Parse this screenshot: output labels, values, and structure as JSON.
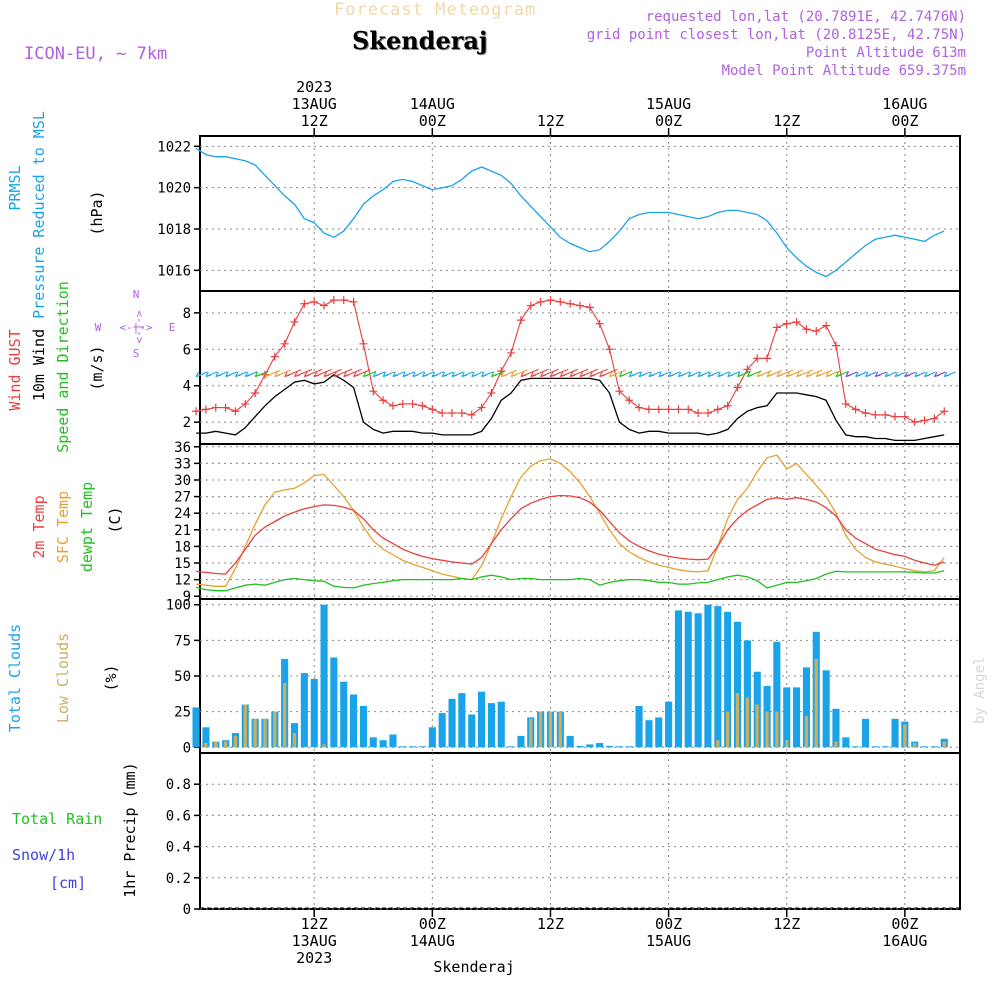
{
  "header": {
    "meteogram_title": "Forecast Meteogram",
    "location": "Skenderaj",
    "model": "ICON-EU, ~ 7km",
    "requested": "requested lon,lat (20.7891E, 42.7476N)",
    "grid_point": "grid point closest lon,lat (20.8125E, 42.75N)",
    "point_altitude": "Point Altitude 613m",
    "model_altitude": "Model Point Altitude 659.375m"
  },
  "footer_location": "Skenderaj",
  "watermark": "by Angel",
  "colors": {
    "pressure": "#1aa3e8",
    "gust": "#e84040",
    "wind": "#000000",
    "sfc_temp": "#e8a030",
    "temp2m": "#e84040",
    "dewpoint": "#22c022",
    "total_clouds": "#1aa3e8",
    "low_clouds": "#c8b060",
    "rain": "#22c022",
    "snow": "#4040e0",
    "purple": "#b060e0"
  },
  "chart_data": [
    {
      "type": "line",
      "title": "PRMSL Pressure Reduced to MSL",
      "ylabel_lines": [
        "PRMSL",
        "Pressure Reduced to MSL",
        "(hPa)"
      ],
      "ylim": [
        1015.0,
        1022.5
      ],
      "yticks": [
        1016,
        1018,
        1020,
        1022
      ],
      "x_hours_from_13aug_00z": [
        0,
        1,
        2,
        3,
        4,
        5,
        6,
        7,
        8,
        9,
        10,
        11,
        12,
        13,
        14,
        15,
        16,
        17,
        18,
        19,
        20,
        21,
        22,
        23,
        24,
        25,
        26,
        27,
        28,
        29,
        30,
        31,
        32,
        33,
        34,
        35,
        36,
        37,
        38,
        39,
        40,
        41,
        42,
        43,
        44,
        45,
        46,
        47,
        48,
        49,
        50,
        51,
        52,
        53,
        54,
        55,
        56,
        57,
        58,
        59,
        60,
        61,
        62,
        63,
        64,
        65,
        66,
        67,
        68,
        69,
        70,
        71,
        72,
        73,
        74,
        75,
        76
      ],
      "series": [
        {
          "name": "PRMSL",
          "values": [
            1021.9,
            1021.6,
            1021.5,
            1021.5,
            1021.4,
            1021.3,
            1021.1,
            1020.6,
            1020.1,
            1019.6,
            1019.2,
            1018.5,
            1018.3,
            1017.8,
            1017.6,
            1017.9,
            1018.5,
            1019.2,
            1019.6,
            1019.9,
            1020.3,
            1020.4,
            1020.3,
            1020.1,
            1019.9,
            1020.0,
            1020.1,
            1020.4,
            1020.8,
            1021.0,
            1020.8,
            1020.6,
            1020.2,
            1019.6,
            1019.1,
            1018.6,
            1018.1,
            1017.6,
            1017.3,
            1017.1,
            1016.9,
            1017.0,
            1017.4,
            1017.9,
            1018.5,
            1018.7,
            1018.8,
            1018.8,
            1018.8,
            1018.7,
            1018.6,
            1018.5,
            1018.6,
            1018.8,
            1018.9,
            1018.9,
            1018.8,
            1018.7,
            1018.4,
            1017.8,
            1017.1,
            1016.6,
            1016.2,
            1015.9,
            1015.7,
            1016.0,
            1016.4,
            1016.8,
            1017.2,
            1017.5,
            1017.6,
            1017.7,
            1017.6,
            1017.5,
            1017.4,
            1017.7,
            1017.9
          ]
        }
      ]
    },
    {
      "type": "line",
      "title": "Wind GUST, 10m Wind Speed and Direction",
      "ylabel_lines": [
        "Wind GUST",
        "10m Wind",
        "Speed and Direction",
        "(m/s)"
      ],
      "compass_labels": {
        "n": "N",
        "s": "S",
        "w": "W",
        "e": "E",
        "arrows": "<-|->"
      },
      "ylim": [
        0.8,
        9.2
      ],
      "yticks": [
        2,
        4,
        6,
        8
      ],
      "x_hours_from_13aug_00z": [
        0,
        1,
        2,
        3,
        4,
        5,
        6,
        7,
        8,
        9,
        10,
        11,
        12,
        13,
        14,
        15,
        16,
        17,
        18,
        19,
        20,
        21,
        22,
        23,
        24,
        25,
        26,
        27,
        28,
        29,
        30,
        31,
        32,
        33,
        34,
        35,
        36,
        37,
        38,
        39,
        40,
        41,
        42,
        43,
        44,
        45,
        46,
        47,
        48,
        49,
        50,
        51,
        52,
        53,
        54,
        55,
        56,
        57,
        58,
        59,
        60,
        61,
        62,
        63,
        64,
        65,
        66,
        67,
        68,
        69,
        70,
        71,
        72,
        73,
        74,
        75,
        76
      ],
      "series": [
        {
          "name": "Wind GUST",
          "marker": "+",
          "values": [
            2.6,
            2.7,
            2.8,
            2.8,
            2.6,
            3.0,
            3.6,
            4.6,
            5.6,
            6.3,
            7.5,
            8.5,
            8.6,
            8.4,
            8.7,
            8.7,
            8.6,
            6.3,
            3.7,
            3.2,
            2.9,
            3.0,
            3.0,
            2.9,
            2.7,
            2.5,
            2.5,
            2.5,
            2.4,
            2.8,
            3.6,
            4.8,
            5.8,
            7.6,
            8.4,
            8.6,
            8.7,
            8.6,
            8.5,
            8.4,
            8.3,
            7.4,
            6.0,
            3.7,
            3.2,
            2.8,
            2.7,
            2.7,
            2.7,
            2.7,
            2.7,
            2.5,
            2.5,
            2.7,
            2.9,
            3.9,
            4.9,
            5.5,
            5.5,
            7.2,
            7.4,
            7.5,
            7.1,
            7.0,
            7.3,
            6.2,
            3.0,
            2.7,
            2.5,
            2.4,
            2.4,
            2.3,
            2.3,
            2.0,
            2.1,
            2.2,
            2.6
          ]
        },
        {
          "name": "10m Wind",
          "values": [
            1.4,
            1.4,
            1.5,
            1.4,
            1.3,
            1.7,
            2.3,
            2.9,
            3.4,
            3.8,
            4.2,
            4.3,
            4.1,
            4.2,
            4.6,
            4.3,
            3.9,
            2.0,
            1.6,
            1.4,
            1.5,
            1.5,
            1.5,
            1.4,
            1.4,
            1.3,
            1.3,
            1.3,
            1.3,
            1.5,
            2.2,
            3.2,
            3.6,
            4.3,
            4.4,
            4.4,
            4.4,
            4.4,
            4.4,
            4.4,
            4.4,
            4.3,
            3.6,
            2.0,
            1.6,
            1.4,
            1.5,
            1.5,
            1.4,
            1.4,
            1.4,
            1.4,
            1.3,
            1.4,
            1.6,
            2.2,
            2.6,
            2.8,
            2.9,
            3.6,
            3.6,
            3.6,
            3.5,
            3.4,
            3.2,
            2.1,
            1.3,
            1.2,
            1.2,
            1.1,
            1.1,
            1.0,
            1.0,
            1.0,
            1.1,
            1.2,
            1.3
          ]
        }
      ]
    },
    {
      "type": "line",
      "title": "2m Temp, SFC Temp, dewpt Temp",
      "ylabel_lines": [
        "2m Temp",
        "SFC Temp",
        "dewpt Temp",
        "(C)"
      ],
      "ylim": [
        8.5,
        36.5
      ],
      "yticks": [
        9,
        12,
        15,
        18,
        21,
        24,
        27,
        30,
        33,
        36
      ],
      "x_hours_from_13aug_00z": [
        0,
        1,
        2,
        3,
        4,
        5,
        6,
        7,
        8,
        9,
        10,
        11,
        12,
        13,
        14,
        15,
        16,
        17,
        18,
        19,
        20,
        21,
        22,
        23,
        24,
        25,
        26,
        27,
        28,
        29,
        30,
        31,
        32,
        33,
        34,
        35,
        36,
        37,
        38,
        39,
        40,
        41,
        42,
        43,
        44,
        45,
        46,
        47,
        48,
        49,
        50,
        51,
        52,
        53,
        54,
        55,
        56,
        57,
        58,
        59,
        60,
        61,
        62,
        63,
        64,
        65,
        66,
        67,
        68,
        69,
        70,
        71,
        72,
        73,
        74,
        75,
        76
      ],
      "series": [
        {
          "name": "SFC Temp",
          "values": [
            11.2,
            11.0,
            10.8,
            10.8,
            14.0,
            18.0,
            22.0,
            25.5,
            27.8,
            28.2,
            28.5,
            29.5,
            30.8,
            31.0,
            29.0,
            27.0,
            24.5,
            21.5,
            19.0,
            17.5,
            16.5,
            15.5,
            14.8,
            14.2,
            13.6,
            13.0,
            12.6,
            12.2,
            12.0,
            14.5,
            18.5,
            23.0,
            27.0,
            30.5,
            32.5,
            33.5,
            33.8,
            33.0,
            31.5,
            29.5,
            27.0,
            24.0,
            21.0,
            18.5,
            17.0,
            16.0,
            15.2,
            14.6,
            14.2,
            13.8,
            13.5,
            13.4,
            13.6,
            18.0,
            23.0,
            26.5,
            28.5,
            31.5,
            34.0,
            34.5,
            32.0,
            33.0,
            31.0,
            29.0,
            27.0,
            24.0,
            20.0,
            17.5,
            16.0,
            15.2,
            14.8,
            14.4,
            14.0,
            13.6,
            13.4,
            13.6,
            16.0
          ]
        },
        {
          "name": "2m Temp",
          "values": [
            13.5,
            13.3,
            13.1,
            13.0,
            15.0,
            17.5,
            20.0,
            21.5,
            22.5,
            23.5,
            24.2,
            24.8,
            25.2,
            25.5,
            25.4,
            25.1,
            24.5,
            23.0,
            21.0,
            19.5,
            18.5,
            17.5,
            16.8,
            16.2,
            15.8,
            15.5,
            15.2,
            15.0,
            14.8,
            16.0,
            18.5,
            21.0,
            23.0,
            24.8,
            25.8,
            26.5,
            27.0,
            27.2,
            27.1,
            26.8,
            26.0,
            24.5,
            22.5,
            20.5,
            19.0,
            18.0,
            17.2,
            16.6,
            16.2,
            15.9,
            15.7,
            15.6,
            15.7,
            18.0,
            21.0,
            23.0,
            24.5,
            25.5,
            26.5,
            26.8,
            26.5,
            26.8,
            26.5,
            26.0,
            25.0,
            23.5,
            21.0,
            19.5,
            18.5,
            17.5,
            17.0,
            16.5,
            16.2,
            15.5,
            15.0,
            14.6,
            15.2
          ]
        },
        {
          "name": "dewpt Temp",
          "values": [
            10.6,
            10.2,
            10.0,
            10.0,
            10.5,
            11.0,
            11.2,
            11.0,
            11.5,
            12.0,
            12.2,
            12.0,
            11.8,
            11.7,
            10.8,
            10.6,
            10.5,
            11.0,
            11.3,
            11.5,
            11.8,
            12.0,
            12.0,
            12.0,
            12.0,
            12.0,
            12.0,
            12.2,
            12.0,
            12.5,
            12.8,
            12.5,
            12.0,
            12.2,
            12.2,
            12.0,
            12.0,
            12.0,
            12.0,
            12.2,
            12.0,
            11.0,
            11.5,
            11.8,
            12.0,
            12.0,
            11.8,
            11.5,
            11.5,
            11.2,
            11.2,
            11.4,
            11.5,
            12.0,
            12.5,
            12.8,
            12.5,
            11.8,
            10.5,
            11.0,
            11.5,
            11.5,
            11.8,
            12.2,
            13.0,
            13.5,
            13.4,
            13.4,
            13.4,
            13.4,
            13.4,
            13.4,
            13.4,
            13.3,
            13.2,
            13.2,
            13.6
          ]
        }
      ]
    },
    {
      "type": "bar",
      "title": "Total Clouds, Low Clouds",
      "ylabel_lines": [
        "Total Clouds",
        "Low Clouds",
        "(%)"
      ],
      "ylim": [
        -4,
        104
      ],
      "yticks": [
        0,
        25,
        50,
        75,
        100
      ],
      "x_hours_from_13aug_00z": [
        0,
        1,
        2,
        3,
        4,
        5,
        6,
        7,
        8,
        9,
        10,
        11,
        12,
        13,
        14,
        15,
        16,
        17,
        18,
        19,
        20,
        21,
        22,
        23,
        24,
        25,
        26,
        27,
        28,
        29,
        30,
        31,
        32,
        33,
        34,
        35,
        36,
        37,
        38,
        39,
        40,
        41,
        42,
        43,
        44,
        45,
        46,
        47,
        48,
        49,
        50,
        51,
        52,
        53,
        54,
        55,
        56,
        57,
        58,
        59,
        60,
        61,
        62,
        63,
        64,
        65,
        66,
        67,
        68,
        69,
        70,
        71,
        72,
        73,
        74,
        75,
        76
      ],
      "series": [
        {
          "name": "Total Clouds",
          "values": [
            28,
            14,
            4,
            5,
            10,
            30,
            20,
            20,
            25,
            62,
            17,
            52,
            48,
            100,
            63,
            46,
            37,
            29,
            7,
            5,
            9,
            0,
            0,
            0,
            14,
            24,
            34,
            38,
            23,
            39,
            31,
            32,
            0,
            8,
            21,
            25,
            25,
            25,
            8,
            1,
            2,
            3,
            1,
            0,
            0,
            29,
            19,
            21,
            32,
            96,
            95,
            94,
            100,
            99,
            95,
            88,
            75,
            53,
            43,
            74,
            42,
            42,
            56,
            81,
            54,
            27,
            7,
            0,
            20,
            0,
            0,
            20,
            18,
            4,
            0,
            0,
            6
          ]
        },
        {
          "name": "Low Clouds",
          "values": [
            0,
            3,
            4,
            4,
            8,
            30,
            20,
            20,
            25,
            45,
            10,
            0,
            0,
            2,
            0,
            0,
            0,
            0,
            0,
            0,
            0,
            0,
            0,
            0,
            0,
            0,
            0,
            0,
            0,
            0,
            0,
            0,
            0,
            0,
            20,
            25,
            25,
            25,
            0,
            0,
            0,
            0,
            0,
            0,
            0,
            0,
            0,
            0,
            0,
            0,
            0,
            0,
            0,
            5,
            25,
            38,
            35,
            30,
            25,
            25,
            5,
            0,
            22,
            62,
            0,
            4,
            0,
            0,
            0,
            0,
            0,
            0,
            16,
            3,
            0,
            0,
            4
          ]
        }
      ]
    },
    {
      "type": "line",
      "title": "Total Rain, Snow/1h",
      "left_labels": [
        "Total Rain",
        "Snow/1h",
        "[cm]"
      ],
      "ylabel": "1hr Precip (mm)",
      "ylim": [
        0,
        1.0
      ],
      "yticks": [
        "0",
        "0.2",
        "0.4",
        "0.6",
        "0.8"
      ],
      "series": [
        {
          "name": "Total Rain",
          "values": []
        },
        {
          "name": "Snow/1h",
          "values": []
        }
      ]
    }
  ],
  "x_axis": {
    "top_ticks": [
      {
        "h": 12,
        "lines": [
          "2023",
          "13AUG",
          "12Z"
        ]
      },
      {
        "h": 24,
        "lines": [
          "14AUG",
          "00Z"
        ]
      },
      {
        "h": 36,
        "lines": [
          "12Z"
        ]
      },
      {
        "h": 48,
        "lines": [
          "15AUG",
          "00Z"
        ]
      },
      {
        "h": 60,
        "lines": [
          "12Z"
        ]
      },
      {
        "h": 72,
        "lines": [
          "16AUG",
          "00Z"
        ]
      }
    ],
    "bottom_ticks": [
      {
        "h": 12,
        "lines": [
          "12Z",
          "13AUG",
          "2023"
        ]
      },
      {
        "h": 24,
        "lines": [
          "00Z",
          "14AUG"
        ]
      },
      {
        "h": 36,
        "lines": [
          "12Z"
        ]
      },
      {
        "h": 48,
        "lines": [
          "00Z",
          "15AUG"
        ]
      },
      {
        "h": 60,
        "lines": [
          "12Z"
        ]
      },
      {
        "h": 72,
        "lines": [
          "00Z",
          "16AUG"
        ]
      }
    ]
  }
}
